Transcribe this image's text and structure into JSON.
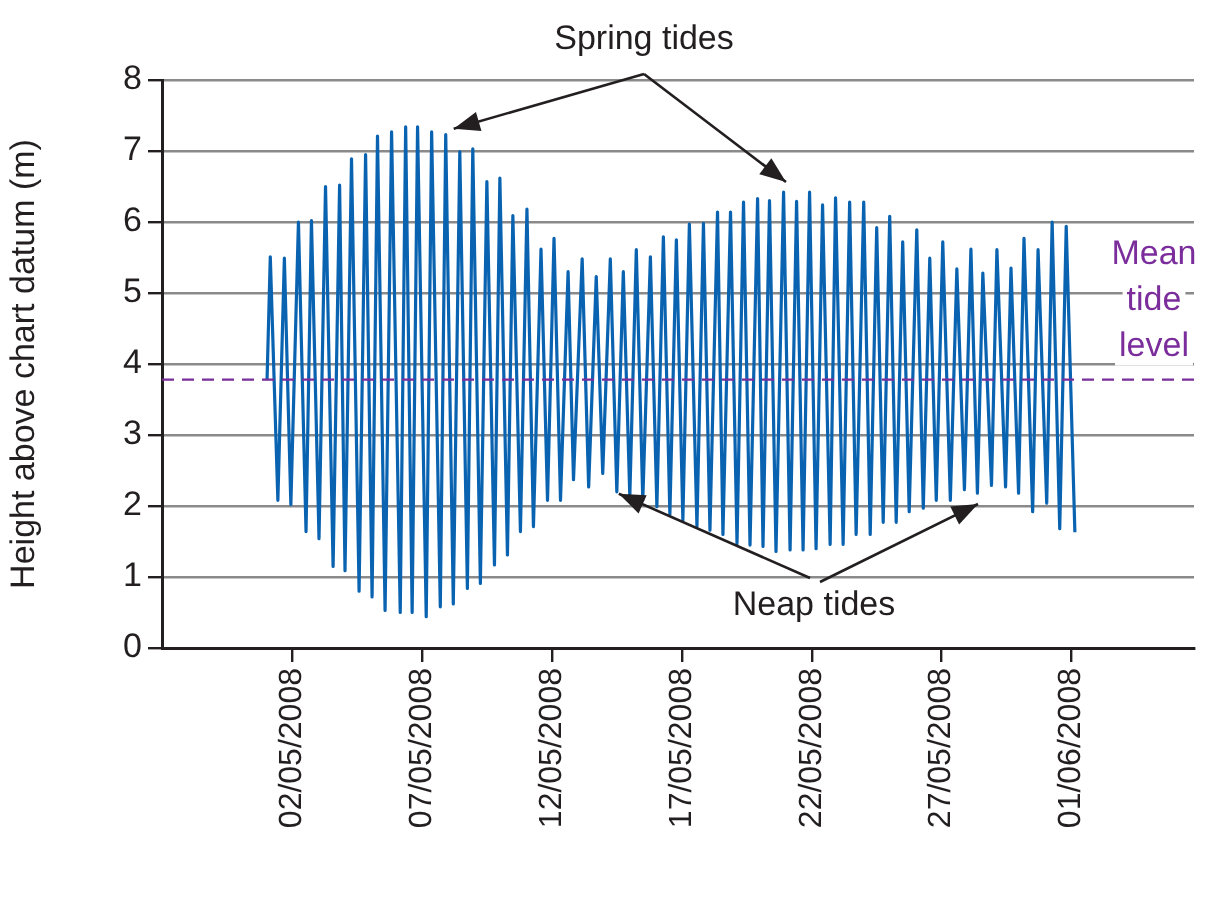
{
  "chart_data": {
    "type": "line",
    "ylabel": "Height above chart datum (m)",
    "annotations": [
      {
        "text": "Spring tides",
        "x": "2008-05-07T22:00",
        "y": 7.23
      },
      {
        "text": "Neap tides",
        "x": "2008-05-14T12:00",
        "y": 2.2
      }
    ],
    "x": [
      "2008-05-01T01:00",
      "2008-05-01T04:00",
      "2008-05-01T11:00",
      "2008-05-01T17:00",
      "2008-05-01T23:00",
      "2008-05-02T06:00",
      "2008-05-02T13:00",
      "2008-05-02T18:00",
      "2008-05-03T01:00",
      "2008-05-03T07:00",
      "2008-05-03T14:00",
      "2008-05-03T20:00",
      "2008-05-04T01:00",
      "2008-05-04T07:00",
      "2008-05-04T14:00",
      "2008-05-04T20:00",
      "2008-05-05T02:00",
      "2008-05-05T07:00",
      "2008-05-05T14:00",
      "2008-05-05T20:00",
      "2008-05-06T04:00",
      "2008-05-06T09:00",
      "2008-05-06T15:00",
      "2008-05-06T20:00",
      "2008-05-07T04:00",
      "2008-05-07T09:00",
      "2008-05-07T17:00",
      "2008-05-07T22:00",
      "2008-05-08T05:00",
      "2008-05-08T11:00",
      "2008-05-08T18:00",
      "2008-05-08T23:00",
      "2008-05-09T06:00",
      "2008-05-09T12:00",
      "2008-05-09T19:00",
      "2008-05-10T00:00",
      "2008-05-10T07:00",
      "2008-05-10T12:00",
      "2008-05-10T19:00",
      "2008-05-11T01:00",
      "2008-05-11T07:00",
      "2008-05-11T14:00",
      "2008-05-11T20:00",
      "2008-05-12T02:00",
      "2008-05-12T08:00",
      "2008-05-12T15:00",
      "2008-05-12T20:00",
      "2008-05-13T04:00",
      "2008-05-13T10:00",
      "2008-05-13T17:00",
      "2008-05-13T23:00",
      "2008-05-14T06:00",
      "2008-05-14T12:00",
      "2008-05-14T18:00",
      "2008-05-15T00:00",
      "2008-05-15T06:00",
      "2008-05-15T12:00",
      "2008-05-15T19:00",
      "2008-05-16T01:00",
      "2008-05-16T07:00",
      "2008-05-16T13:00",
      "2008-05-16T19:00",
      "2008-05-17T01:00",
      "2008-05-17T07:00",
      "2008-05-17T14:00",
      "2008-05-17T20:00",
      "2008-05-18T02:00",
      "2008-05-18T09:00",
      "2008-05-18T14:00",
      "2008-05-18T21:00",
      "2008-05-19T03:00",
      "2008-05-19T09:00",
      "2008-05-19T15:00",
      "2008-05-19T22:00",
      "2008-05-20T03:00",
      "2008-05-20T09:00",
      "2008-05-20T15:00",
      "2008-05-20T22:00",
      "2008-05-21T04:00",
      "2008-05-21T10:00",
      "2008-05-21T16:00",
      "2008-05-21T22:00",
      "2008-05-22T04:00",
      "2008-05-22T10:00",
      "2008-05-22T17:00",
      "2008-05-22T22:00",
      "2008-05-23T05:00",
      "2008-05-23T11:00",
      "2008-05-23T17:00",
      "2008-05-24T00:00",
      "2008-05-24T06:00",
      "2008-05-24T12:00",
      "2008-05-24T18:00",
      "2008-05-25T00:00",
      "2008-05-25T06:00",
      "2008-05-25T12:00",
      "2008-05-25T18:00",
      "2008-05-26T01:00",
      "2008-05-26T07:00",
      "2008-05-26T13:00",
      "2008-05-26T19:00",
      "2008-05-27T01:00",
      "2008-05-27T08:00",
      "2008-05-27T14:00",
      "2008-05-27T21:00",
      "2008-05-28T03:00",
      "2008-05-28T09:00",
      "2008-05-28T14:00",
      "2008-05-28T22:00",
      "2008-05-29T03:00",
      "2008-05-29T11:00",
      "2008-05-29T16:00",
      "2008-05-29T23:00",
      "2008-05-30T04:00",
      "2008-05-30T12:00",
      "2008-05-30T17:00",
      "2008-05-31T01:00",
      "2008-05-31T06:00",
      "2008-05-31T13:00",
      "2008-05-31T19:00",
      "2008-06-01T03:00"
    ],
    "series": [
      {
        "color": "#0a63b0",
        "values": [
          3.77,
          5.51,
          2.08,
          5.49,
          2.02,
          6.0,
          1.64,
          6.02,
          1.54,
          6.5,
          1.15,
          6.52,
          1.09,
          6.89,
          0.8,
          6.95,
          0.72,
          7.21,
          0.53,
          7.27,
          0.5,
          7.34,
          0.5,
          7.34,
          0.44,
          7.27,
          0.58,
          7.23,
          0.62,
          6.99,
          0.84,
          7.03,
          0.91,
          6.57,
          1.17,
          6.62,
          1.31,
          6.09,
          1.64,
          6.18,
          1.71,
          5.62,
          2.08,
          5.77,
          2.08,
          5.3,
          2.37,
          5.48,
          2.27,
          5.23,
          2.46,
          5.48,
          2.2,
          5.3,
          2.13,
          5.61,
          2.08,
          5.51,
          1.99,
          5.79,
          1.88,
          5.75,
          1.8,
          5.97,
          1.71,
          5.98,
          1.66,
          6.14,
          1.6,
          6.14,
          1.47,
          6.28,
          1.45,
          6.33,
          1.43,
          6.3,
          1.36,
          6.42,
          1.38,
          6.29,
          1.38,
          6.42,
          1.4,
          6.24,
          1.46,
          6.34,
          1.46,
          6.28,
          1.6,
          6.28,
          1.6,
          5.92,
          1.77,
          6.08,
          1.77,
          5.72,
          1.92,
          5.89,
          1.97,
          5.49,
          2.08,
          5.72,
          2.08,
          5.34,
          2.23,
          5.62,
          2.18,
          5.28,
          2.29,
          5.61,
          2.27,
          5.35,
          2.18,
          5.77,
          1.92,
          5.61,
          2.04,
          6.0,
          1.68,
          5.94,
          1.63
        ]
      }
    ],
    "xlim": [
      "2008-04-27",
      "2008-06-05T17:00"
    ],
    "xticks": [
      {
        "value": "2008-05-02",
        "label": "02/05/2008"
      },
      {
        "value": "2008-05-07",
        "label": "07/05/2008"
      },
      {
        "value": "2008-05-12",
        "label": "12/05/2008"
      },
      {
        "value": "2008-05-17",
        "label": "17/05/2008"
      },
      {
        "value": "2008-05-22",
        "label": "22/05/2008"
      },
      {
        "value": "2008-05-27",
        "label": "27/05/2008"
      },
      {
        "value": "2008-06-01",
        "label": "01/06/2008"
      }
    ],
    "ylim": [
      0,
      8
    ],
    "yticks": [
      0,
      1,
      2,
      3,
      4,
      5,
      6,
      7,
      8
    ],
    "ref_lines": [
      {
        "axis": "y",
        "value": 3.78,
        "label": "Mean tide level",
        "color": "#7b2d9c",
        "line_style": "dashed"
      }
    ],
    "grid": "y",
    "legend": false,
    "marker": "none",
    "line_style": "solid"
  }
}
